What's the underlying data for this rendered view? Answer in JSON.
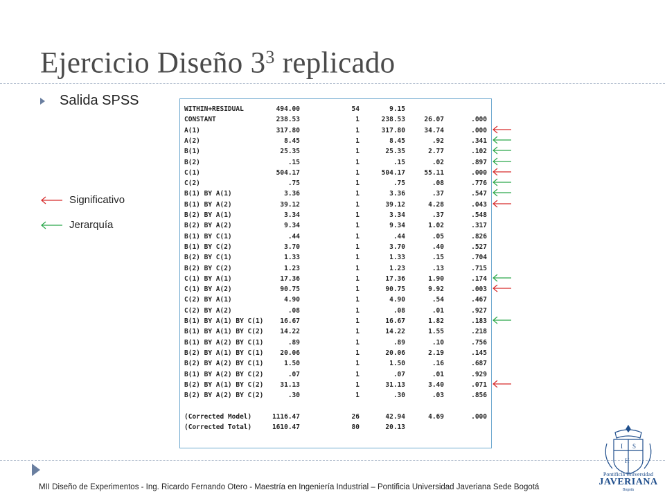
{
  "slide": {
    "title_main": "Ejercicio Diseño 3",
    "title_sup": "3",
    "title_rest": " replicado",
    "bullet": "Salida SPSS",
    "legend": [
      {
        "label": "Significativo",
        "color": "#d62a2a"
      },
      {
        "label": "Jerarquía",
        "color": "#2aa84a"
      }
    ],
    "footer": "MII Diseño de Experimentos  -  Ing. Ricardo Fernando Otero  -  Maestría en Ingeniería Industrial – Pontificia Universidad Javeriana Sede Bogotá",
    "logo": {
      "line1": "Pontificia Universidad",
      "line2": "JAVERIANA",
      "line3": "Bogotá"
    }
  },
  "spss_table": {
    "rows": [
      {
        "source": "WITHIN+RESIDUAL",
        "ss": "494.00",
        "df": "54",
        "ms": "9.15",
        "f": "",
        "sig": "",
        "marker": ""
      },
      {
        "source": "CONSTANT",
        "ss": "238.53",
        "df": "1",
        "ms": "238.53",
        "f": "26.07",
        "sig": ".000",
        "marker": ""
      },
      {
        "source": "A(1)",
        "ss": "317.80",
        "df": "1",
        "ms": "317.80",
        "f": "34.74",
        "sig": ".000",
        "marker": "red"
      },
      {
        "source": "A(2)",
        "ss": "8.45",
        "df": "1",
        "ms": "8.45",
        "f": ".92",
        "sig": ".341",
        "marker": "green"
      },
      {
        "source": "B(1)",
        "ss": "25.35",
        "df": "1",
        "ms": "25.35",
        "f": "2.77",
        "sig": ".102",
        "marker": "green"
      },
      {
        "source": "B(2)",
        "ss": ".15",
        "df": "1",
        "ms": ".15",
        "f": ".02",
        "sig": ".897",
        "marker": "green"
      },
      {
        "source": "C(1)",
        "ss": "504.17",
        "df": "1",
        "ms": "504.17",
        "f": "55.11",
        "sig": ".000",
        "marker": "red"
      },
      {
        "source": "C(2)",
        "ss": ".75",
        "df": "1",
        "ms": ".75",
        "f": ".08",
        "sig": ".776",
        "marker": "green"
      },
      {
        "source": "B(1) BY A(1)",
        "ss": "3.36",
        "df": "1",
        "ms": "3.36",
        "f": ".37",
        "sig": ".547",
        "marker": "green"
      },
      {
        "source": "B(1) BY A(2)",
        "ss": "39.12",
        "df": "1",
        "ms": "39.12",
        "f": "4.28",
        "sig": ".043",
        "marker": "red"
      },
      {
        "source": "B(2) BY A(1)",
        "ss": "3.34",
        "df": "1",
        "ms": "3.34",
        "f": ".37",
        "sig": ".548",
        "marker": ""
      },
      {
        "source": "B(2) BY A(2)",
        "ss": "9.34",
        "df": "1",
        "ms": "9.34",
        "f": "1.02",
        "sig": ".317",
        "marker": ""
      },
      {
        "source": "B(1) BY C(1)",
        "ss": ".44",
        "df": "1",
        "ms": ".44",
        "f": ".05",
        "sig": ".826",
        "marker": ""
      },
      {
        "source": "B(1) BY C(2)",
        "ss": "3.70",
        "df": "1",
        "ms": "3.70",
        "f": ".40",
        "sig": ".527",
        "marker": ""
      },
      {
        "source": "B(2) BY C(1)",
        "ss": "1.33",
        "df": "1",
        "ms": "1.33",
        "f": ".15",
        "sig": ".704",
        "marker": ""
      },
      {
        "source": "B(2) BY C(2)",
        "ss": "1.23",
        "df": "1",
        "ms": "1.23",
        "f": ".13",
        "sig": ".715",
        "marker": ""
      },
      {
        "source": "C(1) BY A(1)",
        "ss": "17.36",
        "df": "1",
        "ms": "17.36",
        "f": "1.90",
        "sig": ".174",
        "marker": "green"
      },
      {
        "source": "C(1) BY A(2)",
        "ss": "90.75",
        "df": "1",
        "ms": "90.75",
        "f": "9.92",
        "sig": ".003",
        "marker": "red"
      },
      {
        "source": "C(2) BY A(1)",
        "ss": "4.90",
        "df": "1",
        "ms": "4.90",
        "f": ".54",
        "sig": ".467",
        "marker": ""
      },
      {
        "source": "C(2) BY A(2)",
        "ss": ".08",
        "df": "1",
        "ms": ".08",
        "f": ".01",
        "sig": ".927",
        "marker": ""
      },
      {
        "source": "B(1) BY A(1) BY C(1)",
        "ss": "16.67",
        "df": "1",
        "ms": "16.67",
        "f": "1.82",
        "sig": ".183",
        "marker": "green"
      },
      {
        "source": "B(1) BY A(1) BY C(2)",
        "ss": "14.22",
        "df": "1",
        "ms": "14.22",
        "f": "1.55",
        "sig": ".218",
        "marker": ""
      },
      {
        "source": "B(1) BY A(2) BY C(1)",
        "ss": ".89",
        "df": "1",
        "ms": ".89",
        "f": ".10",
        "sig": ".756",
        "marker": ""
      },
      {
        "source": "B(2) BY A(1) BY C(1)",
        "ss": "20.06",
        "df": "1",
        "ms": "20.06",
        "f": "2.19",
        "sig": ".145",
        "marker": ""
      },
      {
        "source": "B(2) BY A(2) BY C(1)",
        "ss": "1.50",
        "df": "1",
        "ms": "1.50",
        "f": ".16",
        "sig": ".687",
        "marker": ""
      },
      {
        "source": "B(1) BY A(2) BY C(2)",
        "ss": ".07",
        "df": "1",
        "ms": ".07",
        "f": ".01",
        "sig": ".929",
        "marker": ""
      },
      {
        "source": "B(2) BY A(1) BY C(2)",
        "ss": "31.13",
        "df": "1",
        "ms": "31.13",
        "f": "3.40",
        "sig": ".071",
        "marker": "red"
      },
      {
        "source": "B(2) BY A(2) BY C(2)",
        "ss": ".30",
        "df": "1",
        "ms": ".30",
        "f": ".03",
        "sig": ".856",
        "marker": ""
      },
      {
        "source": "",
        "ss": "",
        "df": "",
        "ms": "",
        "f": "",
        "sig": "",
        "marker": ""
      },
      {
        "source": "(Corrected Model)",
        "ss": "1116.47",
        "df": "26",
        "ms": "42.94",
        "f": "4.69",
        "sig": ".000",
        "marker": ""
      },
      {
        "source": "(Corrected Total)",
        "ss": "1610.47",
        "df": "80",
        "ms": "20.13",
        "f": "",
        "sig": "",
        "marker": ""
      }
    ]
  }
}
